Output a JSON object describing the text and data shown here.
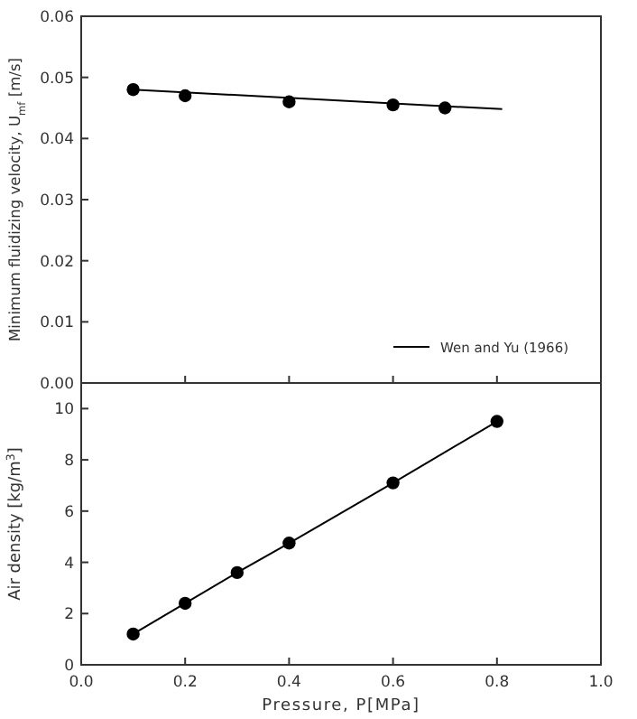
{
  "chart_data": [
    {
      "type": "scatter",
      "ylabel": "Minimum fluidizing velocity, U$_{mf}$ [m/s]",
      "xlim": [
        0,
        1
      ],
      "xticks": [
        0,
        0.2,
        0.4,
        0.6,
        0.8,
        1
      ],
      "ylim": [
        0,
        0.06
      ],
      "yticks": [
        {
          "value": 0,
          "label": "0.00"
        },
        {
          "value": 0.01,
          "label": "0.01"
        },
        {
          "value": 0.02,
          "label": "0.02"
        },
        {
          "value": 0.03,
          "label": "0.03"
        },
        {
          "value": 0.04,
          "label": "0.04"
        },
        {
          "value": 0.05,
          "label": "0.05"
        },
        {
          "value": 0.06,
          "label": "0.06"
        }
      ],
      "tick_labels": "y",
      "legend": "bottom right",
      "series": [
        {
          "type": "scatter",
          "marker": "circle",
          "color": "#000000",
          "x": [
            0.1,
            0.2,
            0.4,
            0.6,
            0.7
          ],
          "values": [
            0.048,
            0.047,
            0.046,
            0.0455,
            0.045
          ]
        },
        {
          "type": "line",
          "name": "Wen and Yu (1966)",
          "color": "#000000",
          "x": [
            0.1,
            0.81
          ],
          "values": [
            0.048,
            0.0448
          ]
        }
      ]
    },
    {
      "type": "line",
      "xlabel": "Pressure, P[MPa]",
      "ylabel": "Air density [kg/m$^{3}$]",
      "xlim": [
        0,
        1
      ],
      "xticks": [
        {
          "value": 0,
          "label": "0.0"
        },
        {
          "value": 0.2,
          "label": "0.2"
        },
        {
          "value": 0.4,
          "label": "0.4"
        },
        {
          "value": 0.6,
          "label": "0.6"
        },
        {
          "value": 0.8,
          "label": "0.8"
        },
        {
          "value": 1,
          "label": "1.0"
        }
      ],
      "ylim": [
        0,
        11
      ],
      "yticks": [
        0,
        2,
        4,
        6,
        8,
        10
      ],
      "marker": "circle",
      "series": [
        {
          "color": "#000000",
          "x": [
            0.1,
            0.2,
            0.3,
            0.4,
            0.6,
            0.8
          ],
          "values": [
            1.2,
            2.4,
            3.6,
            4.75,
            7.1,
            9.5
          ]
        }
      ]
    }
  ]
}
